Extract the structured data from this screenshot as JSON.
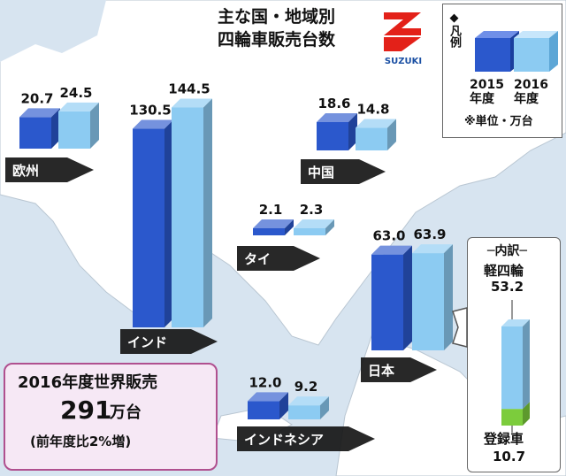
{
  "title": {
    "line1": "主な国・地域別",
    "line2": "四輪車販売台数"
  },
  "logo_text": "SUZUKI",
  "legend": {
    "heading": "◆凡例",
    "year1_year": "2015",
    "year1_label": "年度",
    "year2_year": "2016",
    "year2_label": "年度",
    "unit": "※単位・万台"
  },
  "colors": {
    "year2015": "#2b58cc",
    "year2016": "#8ccbf2",
    "light_registered": "#7ccc3c",
    "map_land": "#ffffff",
    "map_sea": "#d7e4f0"
  },
  "chart_data": {
    "type": "bar",
    "title": "主な国・地域別 四輪車販売台数",
    "unit": "万台",
    "series_years": [
      "2015年度",
      "2016年度"
    ],
    "regions": [
      {
        "name": "欧州",
        "values": [
          20.7,
          24.5
        ],
        "labels": [
          "20.7",
          "24.5"
        ]
      },
      {
        "name": "インド",
        "values": [
          130.5,
          144.5
        ],
        "labels": [
          "130.5",
          "144.5"
        ]
      },
      {
        "name": "中国",
        "values": [
          18.6,
          14.8
        ],
        "labels": [
          "18.6",
          "14.8"
        ]
      },
      {
        "name": "タイ",
        "values": [
          2.1,
          2.3
        ],
        "labels": [
          "2.1",
          "2.3"
        ]
      },
      {
        "name": "日本",
        "values": [
          63.0,
          63.9
        ],
        "labels": [
          "63.0",
          "63.9"
        ]
      },
      {
        "name": "インドネシア",
        "values": [
          12.0,
          9.2
        ],
        "labels": [
          "12.0",
          "9.2"
        ]
      }
    ],
    "japan_breakdown": {
      "heading": "内訳",
      "kei_label": "軽四輪",
      "kei_value": 53.2,
      "kei_text": "53.2",
      "registered_label": "登録車",
      "registered_value": 10.7,
      "registered_text": "10.7"
    }
  },
  "world_sales": {
    "line1": "2016年度世界販売",
    "number": "291",
    "unit": "万台",
    "note": "(前年度比2%増)"
  }
}
